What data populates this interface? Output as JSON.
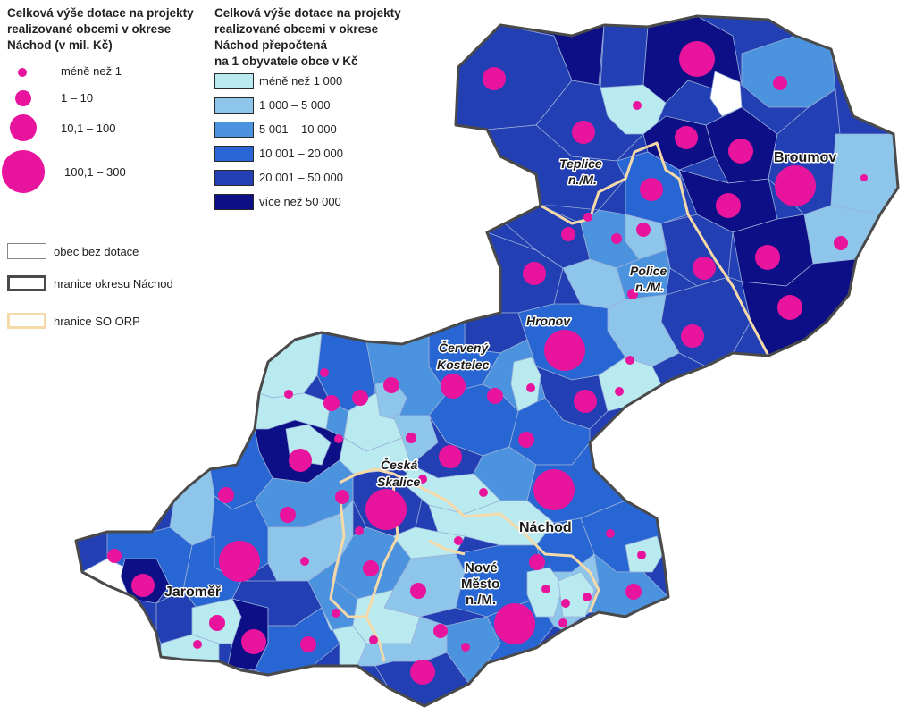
{
  "legend_dotation": {
    "title_lines": [
      "Celková výše dotace na projekty",
      "realizované obcemi v okrese",
      "Náchod (v mil. Kč)"
    ],
    "classes": [
      "méně než 1",
      "1 – 10",
      "10,1 – 100",
      "100,1 – 300"
    ]
  },
  "legend_per_capita": {
    "title_lines": [
      "Celková výše dotace na projekty",
      "realizované obcemi v okrese",
      "Náchod přepočtená",
      "na 1 obyvatele obce v Kč"
    ],
    "classes": [
      {
        "label": "méně než 1 000",
        "color": "#b9eaf0"
      },
      {
        "label": "1 000 – 5 000",
        "color": "#8ec5ea"
      },
      {
        "label": "5 001 – 10 000",
        "color": "#4b93de"
      },
      {
        "label": "10 001 – 20 000",
        "color": "#2766d3"
      },
      {
        "label": "20 001 – 50 000",
        "color": "#223fb4"
      },
      {
        "label": "více než 50 000",
        "color": "#0c0f86"
      }
    ]
  },
  "legend_boundaries": {
    "no_subsidy": "obec bez dotace",
    "district_border": "hranice okresu Náchod",
    "orp_border": "hranice SO ORP"
  },
  "towns": {
    "broumov": "Broumov",
    "teplice_1": "Teplice",
    "teplice_2": "n./M.",
    "police_1": "Police",
    "police_2": "n./M.",
    "hronov": "Hronov",
    "kostelec_1": "Červený",
    "kostelec_2": "Kostelec",
    "skalice_1": "Česká",
    "skalice_2": "Skalice",
    "nachod": "Náchod",
    "nm_1": "Nové",
    "nm_2": "Město",
    "nm_3": "n./M.",
    "jaromer": "Jaroměř"
  },
  "colors": {
    "dot": "#e8149e",
    "district_border": "#4a4a4a",
    "orp_border": "#f5d9a8"
  }
}
